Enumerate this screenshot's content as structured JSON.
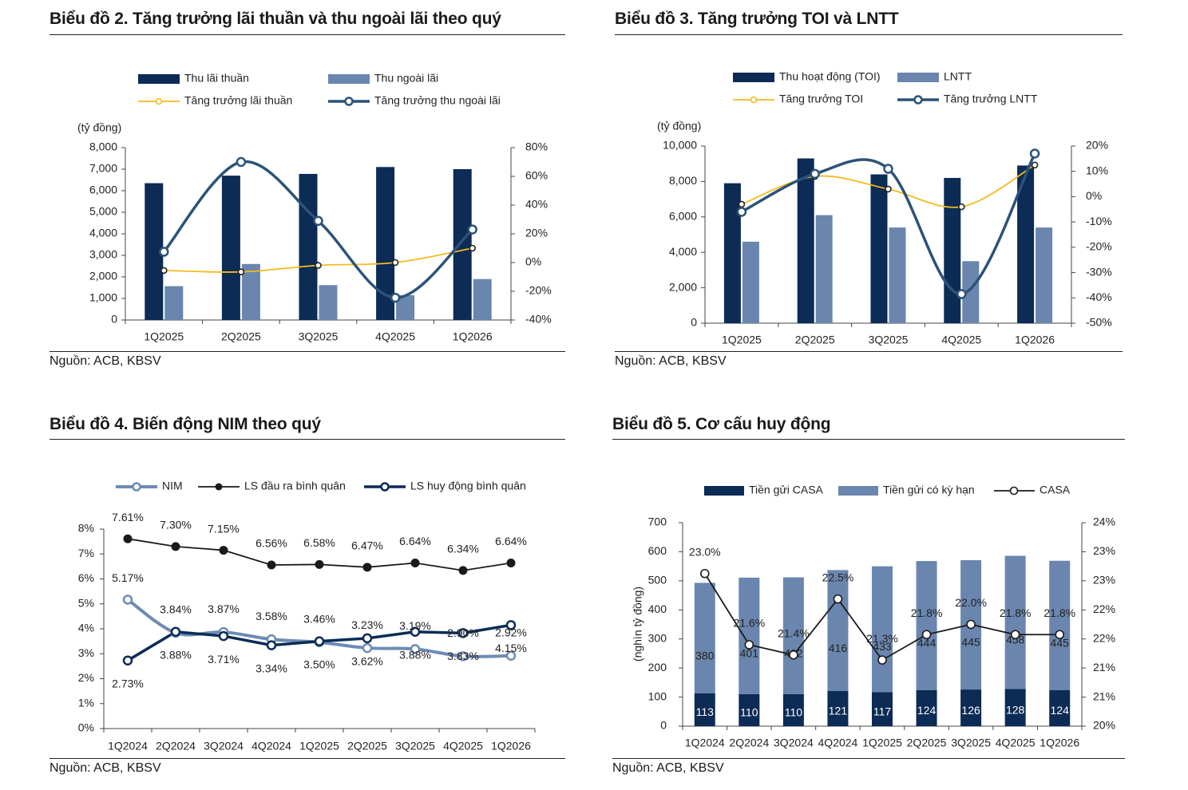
{
  "colors": {
    "navy": "#0c2b55",
    "steel": "#6a86ae",
    "gold": "#f2bc1c",
    "teal": "#2c5378",
    "nim": "#6d8cb4",
    "black": "#1a1a1a"
  },
  "charts": [
    {
      "title": "Biểu đồ 2. Tăng trưởng lãi thuần và thu ngoài lãi theo quý",
      "source": "Nguồn: ACB, KBSV"
    },
    {
      "title": "Biểu đồ 3. Tăng trưởng TOI và LNTT",
      "source": "Nguồn: ACB, KBSV"
    },
    {
      "title": "Biểu đồ 4. Biến động NIM theo quý",
      "source": "Nguồn: ACB, KBSV"
    },
    {
      "title": "Biểu đồ 5. Cơ cấu huy động",
      "source": "Nguồn: ACB, KBSV"
    }
  ],
  "chart_data": [
    {
      "type": "bar",
      "title": "Biểu đồ 2. Tăng trưởng lãi thuần và thu ngoài lãi theo quý",
      "unit_label": "(tỷ đồng)",
      "categories": [
        "1Q2025",
        "2Q2025",
        "3Q2025",
        "4Q2025",
        "1Q2026"
      ],
      "ylim": [
        0,
        8000
      ],
      "yticks": [
        "0",
        "1,000",
        "2,000",
        "3,000",
        "4,000",
        "5,000",
        "6,000",
        "7,000",
        "8,000"
      ],
      "y2lim": [
        -40,
        80
      ],
      "y2ticks": [
        "-40%",
        "-20%",
        "0%",
        "20%",
        "40%",
        "60%",
        "80%"
      ],
      "series": [
        {
          "name": "Thu lãi thuần",
          "kind": "bar",
          "axis": "left",
          "values": [
            6350,
            6700,
            6780,
            7100,
            7000
          ]
        },
        {
          "name": "Thu ngoài lãi",
          "kind": "bar",
          "axis": "left",
          "values": [
            1570,
            2600,
            1620,
            1150,
            1900
          ]
        },
        {
          "name": "Tăng trưởng lãi thuần",
          "kind": "line",
          "axis": "right",
          "values": [
            -5.5,
            -6.5,
            -2,
            0,
            10
          ]
        },
        {
          "name": "Tăng trưởng thu ngoài lãi",
          "kind": "line",
          "axis": "right",
          "values": [
            7.5,
            70,
            29,
            -24.5,
            23
          ]
        }
      ],
      "legend": "top"
    },
    {
      "type": "bar",
      "title": "Biểu đồ 3. Tăng trưởng TOI và LNTT",
      "unit_label": "(tỷ đồng)",
      "categories": [
        "1Q2025",
        "2Q2025",
        "3Q2025",
        "4Q2025",
        "1Q2026"
      ],
      "ylim": [
        0,
        10000
      ],
      "yticks": [
        "0",
        "2,000",
        "4,000",
        "6,000",
        "8,000",
        "10,000"
      ],
      "y2lim": [
        -50,
        20
      ],
      "y2ticks": [
        "-50%",
        "-40%",
        "-30%",
        "-20%",
        "-10%",
        "0%",
        "10%",
        "20%"
      ],
      "series": [
        {
          "name": "Thu hoạt động (TOI)",
          "kind": "bar",
          "axis": "left",
          "values": [
            7900,
            9300,
            8400,
            8200,
            8900
          ]
        },
        {
          "name": "LNTT",
          "kind": "bar",
          "axis": "left",
          "values": [
            4600,
            6100,
            5400,
            3500,
            5400
          ]
        },
        {
          "name": "Tăng trưởng TOI",
          "kind": "line",
          "axis": "right",
          "values": [
            -3,
            8,
            3,
            -4,
            12.5
          ]
        },
        {
          "name": "Tăng trưởng LNTT",
          "kind": "line",
          "axis": "right",
          "values": [
            -6,
            9,
            11,
            -38.5,
            17
          ]
        }
      ],
      "legend": "top"
    },
    {
      "type": "line",
      "title": "Biểu đồ 4. Biến động NIM theo quý",
      "categories": [
        "1Q2024",
        "2Q2024",
        "3Q2024",
        "4Q2024",
        "1Q2025",
        "2Q2025",
        "3Q2025",
        "4Q2025",
        "1Q2026"
      ],
      "ylim": [
        0,
        8
      ],
      "yticks": [
        "0%",
        "1%",
        "2%",
        "3%",
        "4%",
        "5%",
        "6%",
        "7%",
        "8%"
      ],
      "series": [
        {
          "name": "NIM",
          "values": [
            5.17,
            3.84,
            3.87,
            3.58,
            3.46,
            3.23,
            3.19,
            2.9,
            2.92
          ],
          "labels": [
            "5.17%",
            "3.84%",
            "3.87%",
            "3.58%",
            "3.46%",
            "3.23%",
            "3.19%",
            "2.90%",
            "2.92%"
          ]
        },
        {
          "name": "LS đầu ra bình quân",
          "values": [
            7.61,
            7.3,
            7.15,
            6.56,
            6.58,
            6.47,
            6.64,
            6.34,
            6.64
          ],
          "labels": [
            "7.61%",
            "7.30%",
            "7.15%",
            "6.56%",
            "6.58%",
            "6.47%",
            "6.64%",
            "6.34%",
            "6.64%"
          ]
        },
        {
          "name": "LS huy động bình quân",
          "values": [
            2.73,
            3.88,
            3.71,
            3.34,
            3.5,
            3.62,
            3.88,
            3.83,
            4.15
          ],
          "labels": [
            "2.73%",
            "3.88%",
            "3.71%",
            "3.34%",
            "3.50%",
            "3.62%",
            "3.88%",
            "3.83%",
            "4.15%"
          ]
        }
      ],
      "legend": "top"
    },
    {
      "type": "bar",
      "title": "Biểu đồ 5. Cơ cấu huy động",
      "ylabel": "(nghìn tỷ đồng)",
      "categories": [
        "1Q2024",
        "2Q2024",
        "3Q2024",
        "4Q2024",
        "1Q2025",
        "2Q2025",
        "3Q2025",
        "4Q2025",
        "1Q2026"
      ],
      "ylim": [
        0,
        700
      ],
      "yticks": [
        "0",
        "100",
        "200",
        "300",
        "400",
        "500",
        "600",
        "700"
      ],
      "y2lim": [
        20,
        24
      ],
      "y2ticks": [
        "20%",
        "21%",
        "21%",
        "22%",
        "22%",
        "23%",
        "23%",
        "24%"
      ],
      "series": [
        {
          "name": "Tiền gửi CASA",
          "kind": "stacked-bar",
          "values": [
            113,
            110,
            110,
            121,
            117,
            124,
            126,
            128,
            124
          ],
          "labels": [
            "113",
            "110",
            "110",
            "121",
            "117",
            "124",
            "126",
            "128",
            "124"
          ]
        },
        {
          "name": "Tiền gửi có kỳ hạn",
          "kind": "stacked-bar",
          "values": [
            380,
            401,
            402,
            416,
            433,
            444,
            445,
            458,
            445
          ],
          "labels": [
            "380",
            "401",
            "402",
            "416",
            "433",
            "444",
            "445",
            "458",
            "445"
          ]
        },
        {
          "name": "CASA",
          "kind": "line",
          "values": [
            23.0,
            21.6,
            21.4,
            22.5,
            21.3,
            21.8,
            22.0,
            21.8,
            21.8
          ],
          "labels": [
            "23.0%",
            "21.6%",
            "21.4%",
            "22.5%",
            "21.3%",
            "21.8%",
            "22.0%",
            "21.8%",
            "21.8%"
          ]
        }
      ],
      "legend": "top"
    }
  ]
}
